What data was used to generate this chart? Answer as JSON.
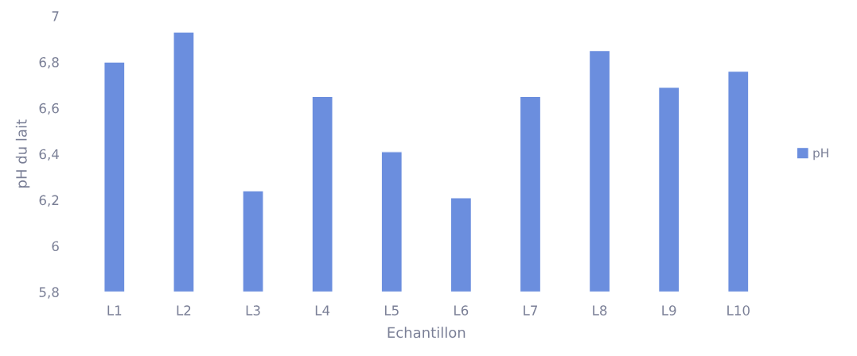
{
  "chart_data": {
    "type": "bar",
    "xlabel": "Echantillon",
    "ylabel": "pH du lait",
    "categories": [
      "L1",
      "L2",
      "L3",
      "L4",
      "L5",
      "L6",
      "L7",
      "L8",
      "L9",
      "L10"
    ],
    "series": [
      {
        "name": "pH",
        "color": "#6b8ede",
        "values": [
          6.8,
          6.93,
          6.24,
          6.65,
          6.41,
          6.21,
          6.65,
          6.85,
          6.69,
          6.76
        ]
      }
    ],
    "ylim": [
      5.8,
      7
    ],
    "yticks": [
      {
        "value": 5.8,
        "label": "5,8"
      },
      6,
      {
        "value": 6.2,
        "label": "6,2"
      },
      {
        "value": 6.4,
        "label": "6,4"
      },
      {
        "value": 6.6,
        "label": "6,6"
      },
      {
        "value": 6.8,
        "label": "6,8"
      },
      7
    ],
    "grid": false,
    "legend": "right"
  }
}
